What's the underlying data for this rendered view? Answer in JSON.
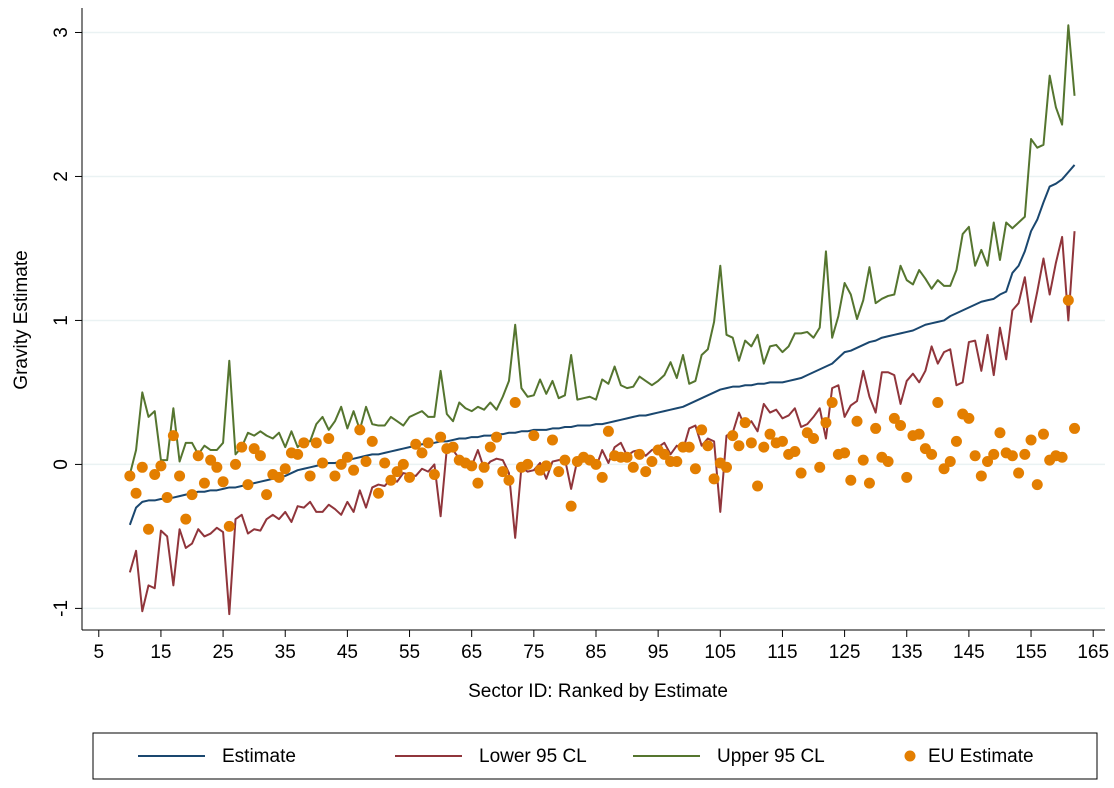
{
  "chart_data": {
    "type": "line",
    "x_label": "Sector ID: Ranked by Estimate",
    "y_label": "Gravity Estimate",
    "xlim": [
      2.3,
      166.9
    ],
    "ylim": [
      -1.15,
      3.17
    ],
    "xticks": [
      5,
      15,
      25,
      35,
      45,
      55,
      65,
      75,
      85,
      95,
      105,
      115,
      125,
      135,
      145,
      155,
      165
    ],
    "yticks": [
      -1,
      0,
      1,
      2,
      3
    ],
    "grid": true,
    "legend": "bottom",
    "x": [
      10,
      11,
      12,
      13,
      14,
      15,
      16,
      17,
      18,
      19,
      20,
      21,
      22,
      23,
      24,
      25,
      26,
      27,
      28,
      29,
      30,
      31,
      32,
      33,
      34,
      35,
      36,
      37,
      38,
      39,
      40,
      41,
      42,
      43,
      44,
      45,
      46,
      47,
      48,
      49,
      50,
      51,
      52,
      53,
      54,
      55,
      56,
      57,
      58,
      59,
      60,
      61,
      62,
      63,
      64,
      65,
      66,
      67,
      68,
      69,
      70,
      71,
      72,
      73,
      74,
      75,
      76,
      77,
      78,
      79,
      80,
      81,
      82,
      83,
      84,
      85,
      86,
      87,
      88,
      89,
      90,
      91,
      92,
      93,
      94,
      95,
      96,
      97,
      98,
      99,
      100,
      101,
      102,
      103,
      104,
      105,
      106,
      107,
      108,
      109,
      110,
      111,
      112,
      113,
      114,
      115,
      116,
      117,
      118,
      119,
      120,
      121,
      122,
      123,
      124,
      125,
      126,
      127,
      128,
      129,
      130,
      131,
      132,
      133,
      134,
      135,
      136,
      137,
      138,
      139,
      140,
      141,
      142,
      143,
      144,
      145,
      146,
      147,
      148,
      149,
      150,
      151,
      152,
      153,
      154,
      155,
      156,
      157,
      158,
      159,
      160,
      161,
      162
    ],
    "series": [
      {
        "name": "Estimate",
        "type": "line",
        "color": "#1a476f",
        "values": [
          -0.42,
          -0.3,
          -0.26,
          -0.25,
          -0.25,
          -0.24,
          -0.24,
          -0.23,
          -0.22,
          -0.21,
          -0.2,
          -0.19,
          -0.19,
          -0.18,
          -0.18,
          -0.17,
          -0.16,
          -0.16,
          -0.15,
          -0.14,
          -0.13,
          -0.12,
          -0.11,
          -0.1,
          -0.09,
          -0.08,
          -0.06,
          -0.04,
          -0.03,
          -0.02,
          -0.01,
          0.0,
          0.01,
          0.01,
          0.02,
          0.03,
          0.04,
          0.05,
          0.06,
          0.07,
          0.07,
          0.08,
          0.09,
          0.1,
          0.11,
          0.12,
          0.13,
          0.14,
          0.14,
          0.15,
          0.16,
          0.16,
          0.17,
          0.18,
          0.18,
          0.19,
          0.19,
          0.2,
          0.2,
          0.21,
          0.21,
          0.22,
          0.22,
          0.23,
          0.23,
          0.24,
          0.24,
          0.24,
          0.25,
          0.25,
          0.26,
          0.26,
          0.27,
          0.27,
          0.27,
          0.28,
          0.28,
          0.29,
          0.3,
          0.31,
          0.32,
          0.33,
          0.34,
          0.34,
          0.35,
          0.36,
          0.37,
          0.38,
          0.39,
          0.4,
          0.42,
          0.44,
          0.46,
          0.48,
          0.5,
          0.52,
          0.53,
          0.54,
          0.54,
          0.55,
          0.55,
          0.56,
          0.56,
          0.57,
          0.57,
          0.57,
          0.58,
          0.59,
          0.6,
          0.62,
          0.64,
          0.66,
          0.68,
          0.7,
          0.74,
          0.78,
          0.79,
          0.81,
          0.83,
          0.85,
          0.86,
          0.88,
          0.89,
          0.9,
          0.91,
          0.92,
          0.93,
          0.95,
          0.97,
          0.98,
          0.99,
          1.0,
          1.03,
          1.05,
          1.07,
          1.09,
          1.11,
          1.13,
          1.14,
          1.15,
          1.18,
          1.2,
          1.33,
          1.38,
          1.48,
          1.62,
          1.7,
          1.82,
          1.93,
          1.95,
          1.98,
          2.03,
          2.08
        ]
      },
      {
        "name": "Lower 95 CL",
        "type": "line",
        "color": "#90353b",
        "values": [
          -0.75,
          -0.6,
          -1.02,
          -0.84,
          -0.86,
          -0.46,
          -0.5,
          -0.84,
          -0.45,
          -0.58,
          -0.55,
          -0.45,
          -0.5,
          -0.48,
          -0.44,
          -0.47,
          -1.04,
          -0.38,
          -0.35,
          -0.48,
          -0.45,
          -0.46,
          -0.38,
          -0.35,
          -0.38,
          -0.33,
          -0.4,
          -0.29,
          -0.3,
          -0.26,
          -0.33,
          -0.33,
          -0.28,
          -0.31,
          -0.35,
          -0.26,
          -0.33,
          -0.18,
          -0.3,
          -0.16,
          -0.14,
          -0.15,
          -0.1,
          -0.12,
          -0.06,
          -0.07,
          -0.08,
          -0.03,
          -0.05,
          0.0,
          -0.36,
          0.11,
          0.1,
          0.04,
          0.0,
          -0.01,
          0.1,
          -0.03,
          0.02,
          0.04,
          0.03,
          -0.06,
          -0.51,
          -0.02,
          -0.05,
          -0.04,
          0.01,
          -0.1,
          0.02,
          0.03,
          0.04,
          -0.17,
          0.03,
          0.05,
          0.02,
          -0.02,
          0.1,
          0.01,
          0.12,
          0.15,
          0.06,
          0.09,
          0.1,
          0.06,
          0.1,
          0.12,
          0.15,
          0.07,
          0.13,
          0.1,
          0.25,
          0.27,
          0.13,
          0.18,
          0.16,
          -0.33,
          0.2,
          0.22,
          0.36,
          0.26,
          0.3,
          0.23,
          0.42,
          0.36,
          0.38,
          0.32,
          0.34,
          0.39,
          0.26,
          0.28,
          0.33,
          0.39,
          0.18,
          0.53,
          0.55,
          0.33,
          0.41,
          0.44,
          0.65,
          0.47,
          0.36,
          0.64,
          0.64,
          0.62,
          0.42,
          0.58,
          0.63,
          0.57,
          0.65,
          0.82,
          0.7,
          0.78,
          0.8,
          0.55,
          0.57,
          0.85,
          0.86,
          0.65,
          0.9,
          0.62,
          0.95,
          0.73,
          1.07,
          1.12,
          1.3,
          0.99,
          1.2,
          1.43,
          1.18,
          1.4,
          1.58,
          1.0,
          1.62
        ]
      },
      {
        "name": "Upper 95 CL",
        "type": "line",
        "color": "#55752f",
        "values": [
          -0.07,
          0.1,
          0.5,
          0.33,
          0.37,
          0.03,
          0.03,
          0.39,
          0.02,
          0.15,
          0.15,
          0.07,
          0.13,
          0.1,
          0.1,
          0.15,
          0.72,
          0.07,
          0.12,
          0.22,
          0.2,
          0.23,
          0.2,
          0.18,
          0.22,
          0.12,
          0.23,
          0.12,
          0.16,
          0.16,
          0.28,
          0.33,
          0.24,
          0.3,
          0.4,
          0.25,
          0.37,
          0.24,
          0.4,
          0.28,
          0.27,
          0.27,
          0.33,
          0.3,
          0.27,
          0.33,
          0.35,
          0.37,
          0.33,
          0.33,
          0.65,
          0.35,
          0.3,
          0.43,
          0.39,
          0.37,
          0.4,
          0.38,
          0.43,
          0.38,
          0.47,
          0.58,
          0.97,
          0.53,
          0.47,
          0.48,
          0.59,
          0.49,
          0.58,
          0.46,
          0.48,
          0.76,
          0.45,
          0.46,
          0.47,
          0.45,
          0.59,
          0.56,
          0.68,
          0.55,
          0.53,
          0.54,
          0.61,
          0.58,
          0.55,
          0.58,
          0.62,
          0.71,
          0.6,
          0.76,
          0.56,
          0.58,
          0.76,
          0.8,
          0.99,
          1.38,
          0.9,
          0.88,
          0.72,
          0.86,
          0.82,
          0.9,
          0.7,
          0.82,
          0.83,
          0.78,
          0.82,
          0.91,
          0.91,
          0.92,
          0.88,
          0.95,
          1.48,
          0.88,
          1.03,
          1.26,
          1.18,
          1.01,
          1.14,
          1.37,
          1.12,
          1.15,
          1.17,
          1.18,
          1.38,
          1.28,
          1.25,
          1.35,
          1.29,
          1.22,
          1.28,
          1.24,
          1.24,
          1.35,
          1.6,
          1.65,
          1.38,
          1.49,
          1.38,
          1.68,
          1.42,
          1.68,
          1.64,
          1.68,
          1.72,
          2.26,
          2.2,
          2.22,
          2.7,
          2.48,
          2.36,
          3.05,
          2.56
        ]
      },
      {
        "name": "EU Estimate",
        "type": "scatter",
        "color": "#e37e00",
        "values": [
          -0.08,
          -0.2,
          -0.02,
          -0.45,
          -0.07,
          -0.01,
          -0.23,
          0.2,
          -0.08,
          -0.38,
          -0.21,
          0.06,
          -0.13,
          0.03,
          -0.02,
          -0.12,
          -0.43,
          0.0,
          0.12,
          -0.14,
          0.11,
          0.06,
          -0.21,
          -0.07,
          -0.09,
          -0.03,
          0.08,
          0.07,
          0.15,
          -0.08,
          0.15,
          0.01,
          0.18,
          -0.08,
          0.0,
          0.05,
          -0.04,
          0.24,
          0.02,
          0.16,
          -0.2,
          0.01,
          -0.11,
          -0.05,
          0.0,
          -0.09,
          0.14,
          0.08,
          0.15,
          -0.07,
          0.19,
          0.11,
          0.12,
          0.03,
          0.01,
          -0.01,
          -0.13,
          -0.02,
          0.12,
          0.19,
          -0.05,
          -0.11,
          0.43,
          -0.02,
          0.0,
          0.2,
          -0.04,
          -0.01,
          0.17,
          -0.05,
          0.03,
          -0.29,
          0.02,
          0.05,
          0.03,
          0.0,
          -0.09,
          0.23,
          0.06,
          0.05,
          0.05,
          -0.02,
          0.07,
          -0.05,
          0.02,
          0.1,
          0.07,
          0.02,
          0.02,
          0.12,
          0.12,
          -0.03,
          0.24,
          0.13,
          -0.1,
          0.01,
          -0.02,
          0.2,
          0.13,
          0.29,
          0.15,
          -0.15,
          0.12,
          0.21,
          0.15,
          0.16,
          0.07,
          0.09,
          -0.06,
          0.22,
          0.18,
          -0.02,
          0.29,
          0.43,
          0.07,
          0.08,
          -0.11,
          0.3,
          0.03,
          -0.13,
          0.25,
          0.05,
          0.02,
          0.32,
          0.27,
          -0.09,
          0.2,
          0.21,
          0.11,
          0.07,
          0.43,
          -0.03,
          0.02,
          0.16,
          0.35,
          0.32,
          0.06,
          -0.08,
          0.02,
          0.07,
          0.22,
          0.08,
          0.06,
          -0.06,
          0.07,
          0.17,
          -0.14,
          0.21,
          0.03,
          0.06,
          0.05,
          1.14,
          0.25
        ]
      }
    ]
  }
}
